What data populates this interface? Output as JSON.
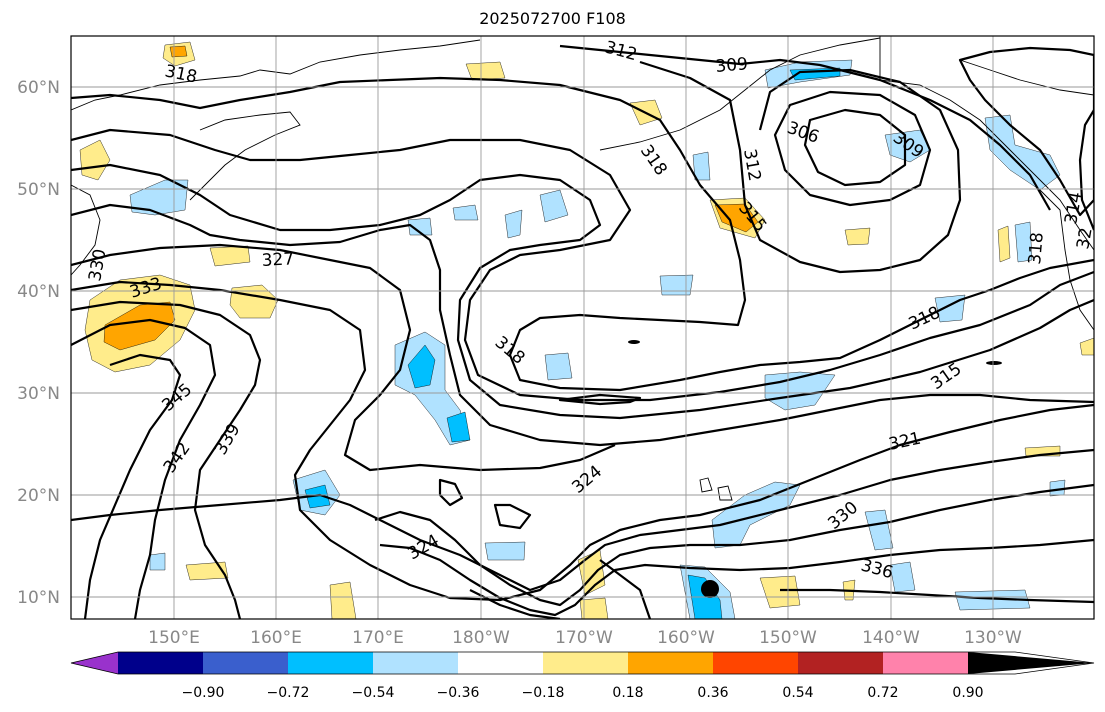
{
  "title": "2025072700 F108",
  "map": {
    "lat_labels": [
      "60°N",
      "50°N",
      "40°N",
      "30°N",
      "20°N",
      "10°N"
    ],
    "lon_labels": [
      "150°E",
      "160°E",
      "170°E",
      "180°W",
      "170°W",
      "160°W",
      "150°W",
      "140°W",
      "130°W"
    ],
    "contour_labels": [
      "312",
      "309",
      "318",
      "306",
      "309",
      "318",
      "312",
      "315",
      "327",
      "333",
      "330",
      "318",
      "318",
      "315",
      "345",
      "339",
      "342",
      "321",
      "324",
      "324",
      "330",
      "336",
      "318",
      "314",
      "32"
    ]
  },
  "colorbar": {
    "ticks": [
      "−0.90",
      "−0.72",
      "−0.54",
      "−0.36",
      "−0.18",
      "0.18",
      "0.36",
      "0.54",
      "0.72",
      "0.90"
    ],
    "colors": [
      "#9932cc",
      "#00008b",
      "#3a5fcd",
      "#00bfff",
      "#b0e2ff",
      "#ffffff",
      "#ffec8b",
      "#ffa500",
      "#ff4500",
      "#b22222",
      "#ff82ab"
    ]
  }
}
